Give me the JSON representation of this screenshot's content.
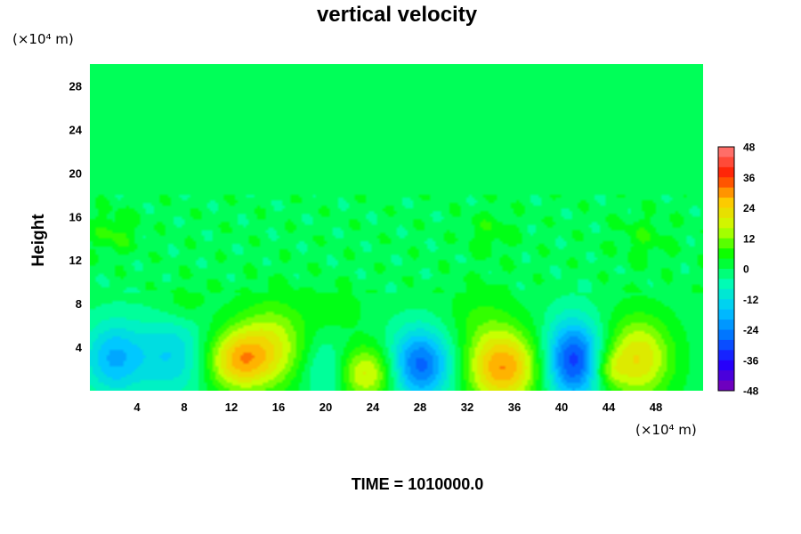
{
  "chart_data": {
    "type": "heatmap",
    "title": "vertical velocity",
    "ylabel": "Height",
    "x_unit_label": "(×10⁴ m)",
    "y_unit_label": "(×10⁴ m)",
    "footer": "TIME = 1010000.0",
    "xlim": [
      0,
      52
    ],
    "ylim": [
      0,
      30
    ],
    "x_ticks": [
      4,
      8,
      12,
      16,
      20,
      24,
      28,
      32,
      36,
      40,
      44,
      48
    ],
    "y_ticks": [
      4,
      8,
      12,
      16,
      20,
      24,
      28
    ],
    "colorbar": {
      "range": [
        -48,
        48
      ],
      "step": 4,
      "tick_labels": [
        48,
        36,
        24,
        12,
        0,
        -12,
        -24,
        -36,
        -48
      ],
      "colors": [
        "#8000b0",
        "#2000ff",
        "#0070ff",
        "#00c8ff",
        "#00ffb0",
        "#00ff00",
        "#c8ff00",
        "#ffc800",
        "#ff2000",
        "#ff8080"
      ]
    },
    "features": [
      {
        "x": 2.0,
        "y": 3.0,
        "value": -18,
        "sx": 1.8,
        "sy": 2.4
      },
      {
        "x": 7.0,
        "y": 3.2,
        "value": -14,
        "sx": 2.2,
        "sy": 2.6
      },
      {
        "x": 12.5,
        "y": 2.8,
        "value": 24,
        "sx": 2.0,
        "sy": 2.0
      },
      {
        "x": 15.5,
        "y": 4.2,
        "value": 16,
        "sx": 2.2,
        "sy": 2.8
      },
      {
        "x": 20.0,
        "y": 1.8,
        "value": -10,
        "sx": 1.4,
        "sy": 2.2
      },
      {
        "x": 23.5,
        "y": 1.6,
        "value": 20,
        "sx": 1.8,
        "sy": 1.8
      },
      {
        "x": 28.0,
        "y": 2.4,
        "value": -28,
        "sx": 1.9,
        "sy": 2.3
      },
      {
        "x": 35.0,
        "y": 2.2,
        "value": 30,
        "sx": 2.2,
        "sy": 2.4
      },
      {
        "x": 41.0,
        "y": 2.8,
        "value": -32,
        "sx": 1.7,
        "sy": 2.6
      },
      {
        "x": 46.5,
        "y": 3.0,
        "value": 22,
        "sx": 2.0,
        "sy": 2.6
      },
      {
        "x": 44.0,
        "y": 2.0,
        "value": 10,
        "sx": 1.0,
        "sy": 1.2
      },
      {
        "x": 2.0,
        "y": 14.5,
        "value": 7,
        "sx": 1.3,
        "sy": 1.3
      },
      {
        "x": 8.0,
        "y": 8.0,
        "value": 5,
        "sx": 1.5,
        "sy": 1.3
      },
      {
        "x": 21.0,
        "y": 7.5,
        "value": 5,
        "sx": 1.5,
        "sy": 1.3
      },
      {
        "x": 34.0,
        "y": 14.5,
        "value": 5,
        "sx": 1.4,
        "sy": 1.4
      },
      {
        "x": 33.0,
        "y": 7.0,
        "value": 5,
        "sx": 2.0,
        "sy": 2.0
      },
      {
        "x": 47.0,
        "y": 14.0,
        "value": 5,
        "sx": 1.6,
        "sy": 1.4
      }
    ]
  }
}
